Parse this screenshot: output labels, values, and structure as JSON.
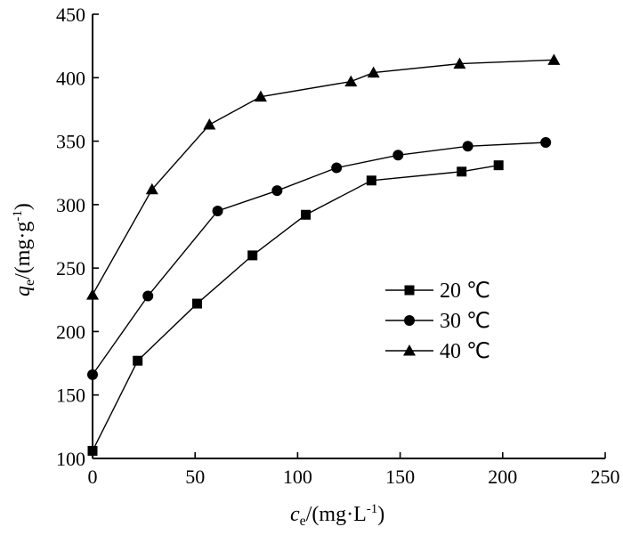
{
  "chart_data": {
    "type": "line",
    "xlabel_main": "c",
    "xlabel_sub": "e",
    "xlabel_unit": "/(mg·L",
    "xlabel_sup": "-1",
    "xlabel_close": ")",
    "ylabel_main": "q",
    "ylabel_sub": "e",
    "ylabel_unit": "/(mg·g",
    "ylabel_sup": "-1",
    "ylabel_close": ")",
    "xlim": [
      0,
      250
    ],
    "ylim": [
      100,
      450
    ],
    "xticks": [
      0,
      50,
      100,
      150,
      200,
      250
    ],
    "yticks": [
      100,
      150,
      200,
      250,
      300,
      350,
      400,
      450
    ],
    "grid": false,
    "legend_position": "center-right",
    "series": [
      {
        "name": "20 ℃",
        "marker": "square",
        "points": [
          [
            0,
            106
          ],
          [
            22,
            177
          ],
          [
            51,
            222
          ],
          [
            78,
            260
          ],
          [
            104,
            292
          ],
          [
            136,
            319
          ],
          [
            180,
            326
          ],
          [
            198,
            331
          ]
        ]
      },
      {
        "name": "30 ℃",
        "marker": "circle",
        "points": [
          [
            0,
            166
          ],
          [
            27,
            228
          ],
          [
            61,
            295
          ],
          [
            90,
            311
          ],
          [
            119,
            329
          ],
          [
            149,
            339
          ],
          [
            183,
            346
          ],
          [
            221,
            349
          ]
        ]
      },
      {
        "name": "40 ℃",
        "marker": "triangle",
        "points": [
          [
            0,
            229
          ],
          [
            29,
            312
          ],
          [
            57,
            363
          ],
          [
            82,
            385
          ],
          [
            126,
            397
          ],
          [
            137,
            404
          ],
          [
            179,
            411
          ],
          [
            225,
            414
          ]
        ]
      }
    ]
  }
}
